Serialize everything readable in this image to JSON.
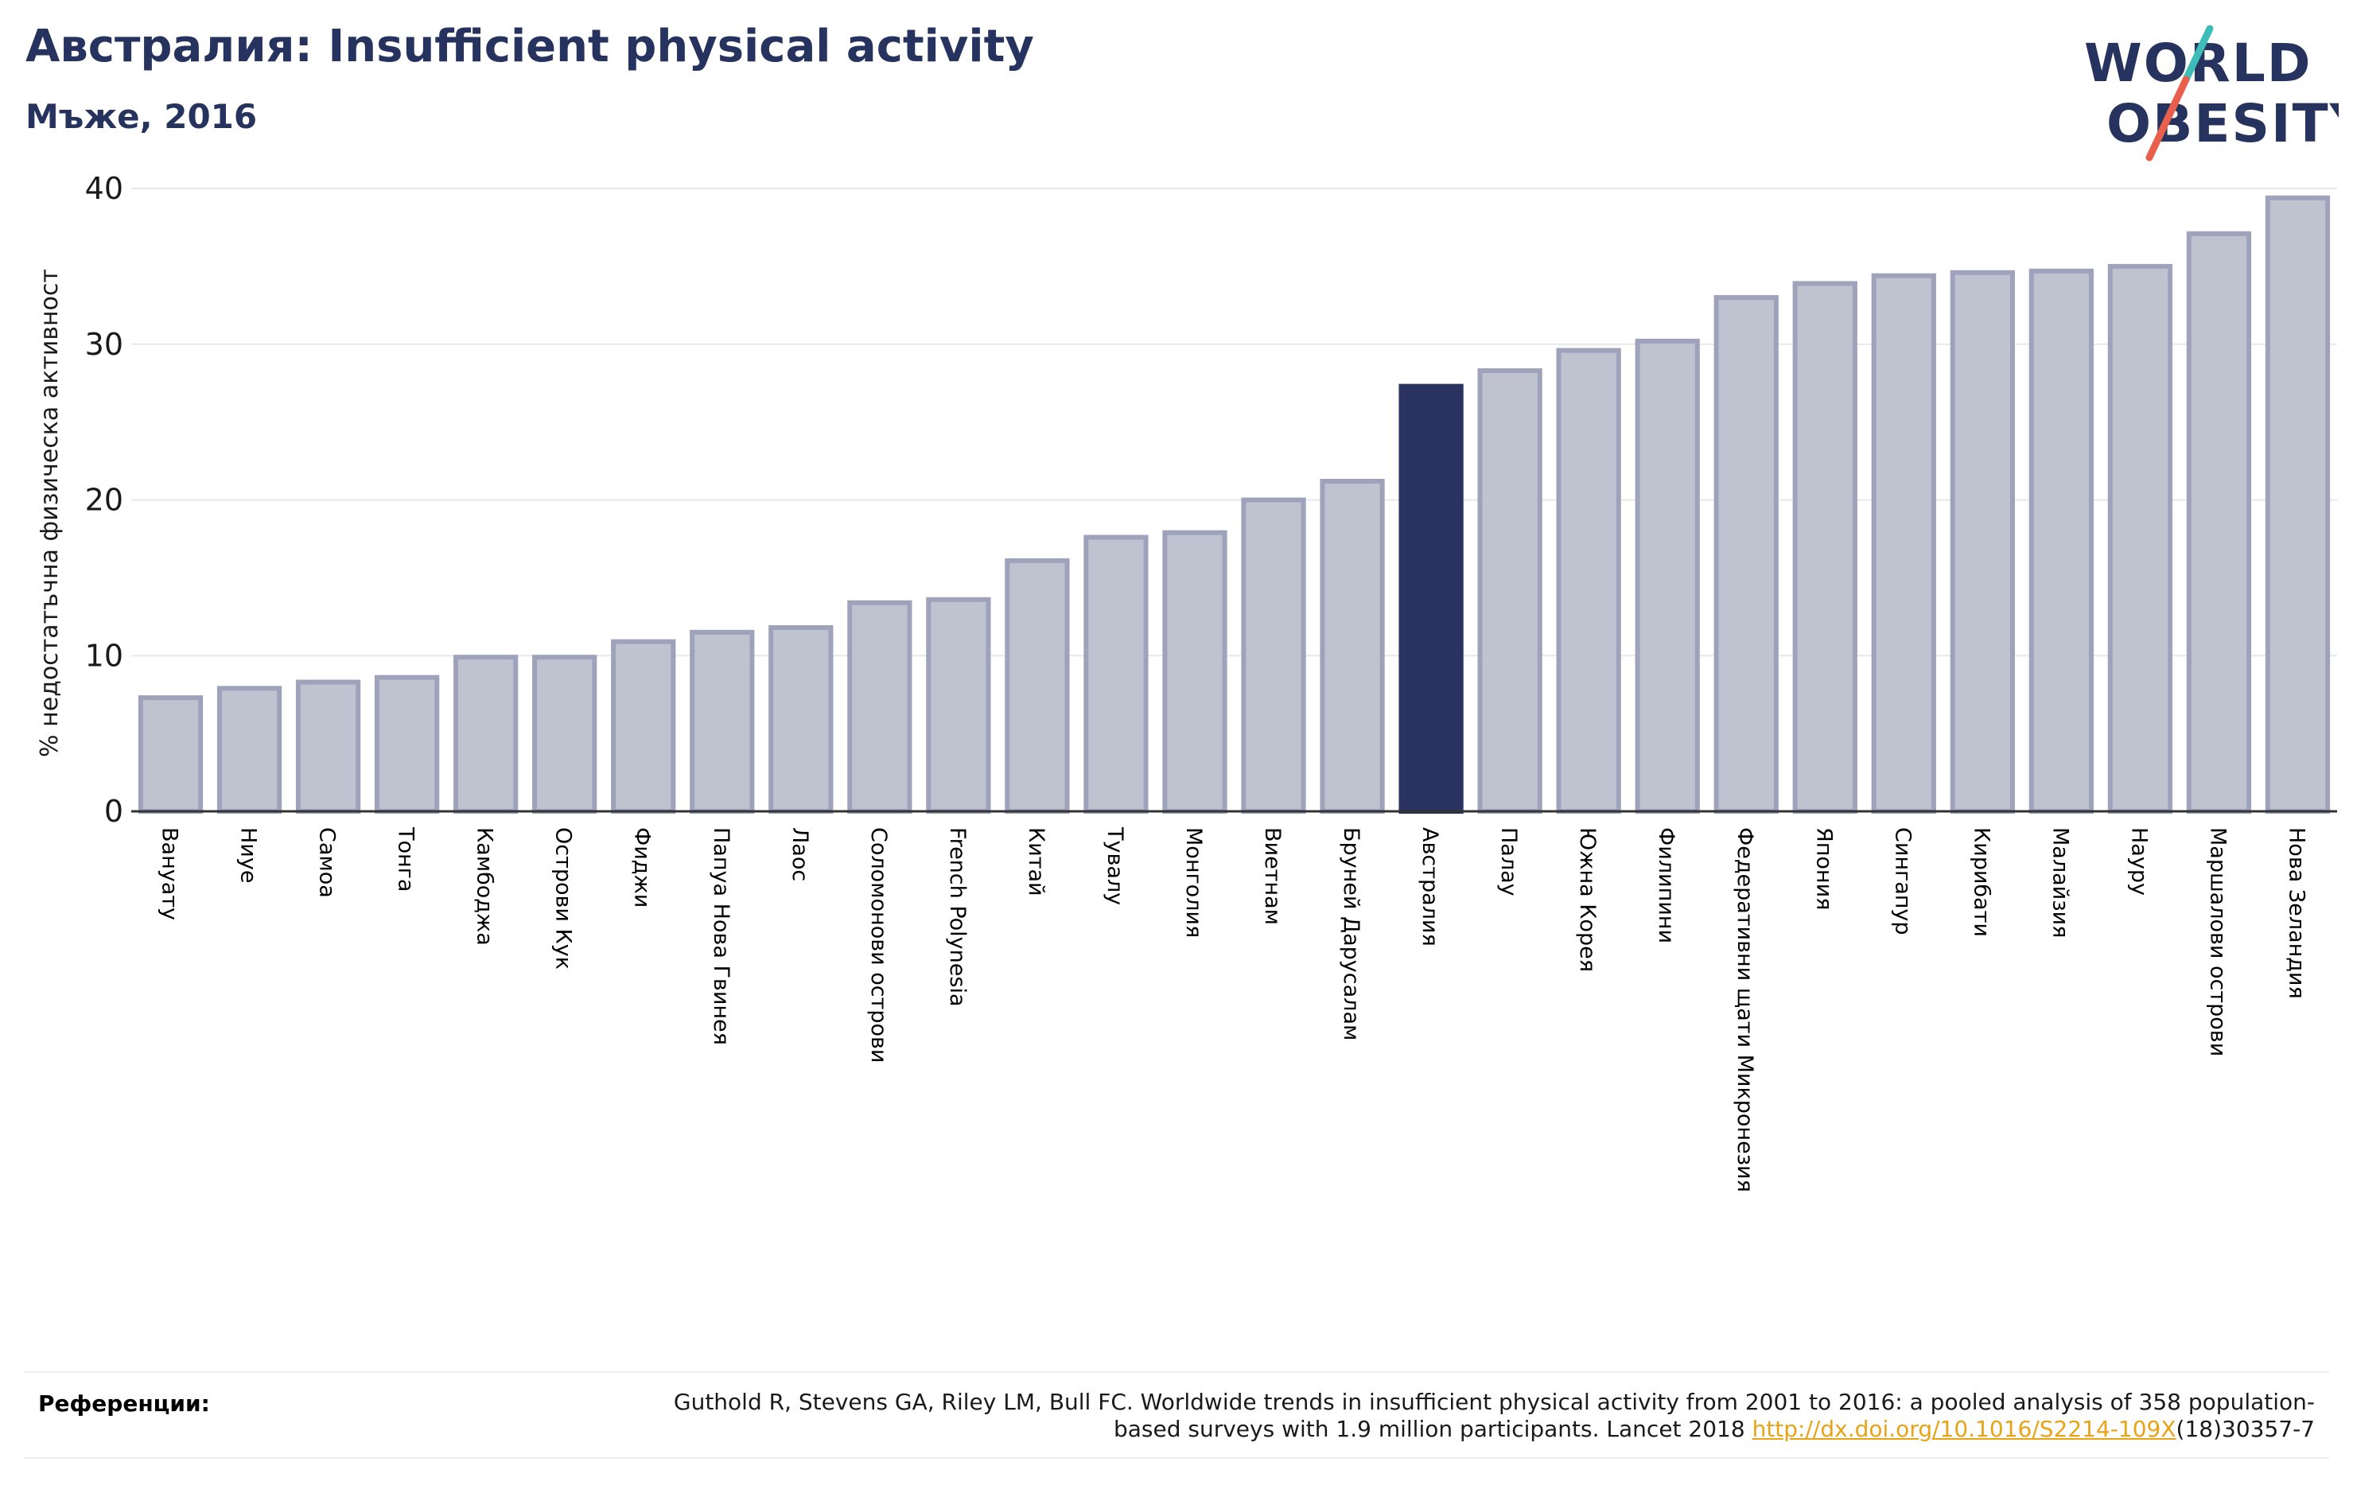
{
  "header": {
    "title": "Австралия: Insufficient physical activity",
    "subtitle": "Мъже, 2016"
  },
  "logo": {
    "line1": "WORLD",
    "line2": "OBESITY",
    "text_color": "#27335f",
    "slash_colors": [
      "#3dbcb8",
      "#e8604c"
    ]
  },
  "colors": {
    "bar": "#bfc2cf",
    "bar_border": "#9ea3bb",
    "highlight": "#2b3461",
    "grid": "#e6e8ee",
    "axis": "#333333"
  },
  "chart_data": {
    "type": "bar",
    "ylabel": "% недостатъчна физическа активност",
    "ylim": [
      0,
      40
    ],
    "yticks": [
      0,
      10,
      20,
      30,
      40
    ],
    "grid": true,
    "highlight_category": "Австралия",
    "categories": [
      "Вануату",
      "Ниуе",
      "Самоа",
      "Тонга",
      "Камбоджа",
      "Острови Кук",
      "Фиджи",
      "Папуа Нова Гвинея",
      "Лаос",
      "Соломонови острови",
      "French Polynesia",
      "Китай",
      "Тувалу",
      "Монголия",
      "Виетнам",
      "Бруней Дарусалам",
      "Австралия",
      "Палау",
      "Южна Корея",
      "Филипини",
      "Федеративни щати Микронезия",
      "Япония",
      "Сингапур",
      "Кирибати",
      "Малайзия",
      "Науру",
      "Маршалови острови",
      "Нова Зеландия"
    ],
    "values": [
      7.3,
      7.9,
      8.3,
      8.6,
      9.9,
      9.9,
      10.9,
      11.5,
      11.8,
      13.4,
      13.6,
      16.1,
      17.6,
      17.9,
      20.0,
      21.2,
      27.3,
      28.3,
      29.6,
      30.2,
      33.0,
      33.9,
      34.4,
      34.6,
      34.7,
      35.0,
      37.1,
      39.4
    ]
  },
  "references": {
    "label": "Референции:",
    "text_before": "Guthold R, Stevens GA, Riley LM, Bull FC. Worldwide trends in insufficient physical activity from 2001 to 2016: a pooled analysis of 358 population-based surveys with 1.9 million participants. Lancet 2018 ",
    "link_text": "http://dx.doi.org/10.1016/S2214-109X",
    "text_after": "(18)30357-7"
  }
}
